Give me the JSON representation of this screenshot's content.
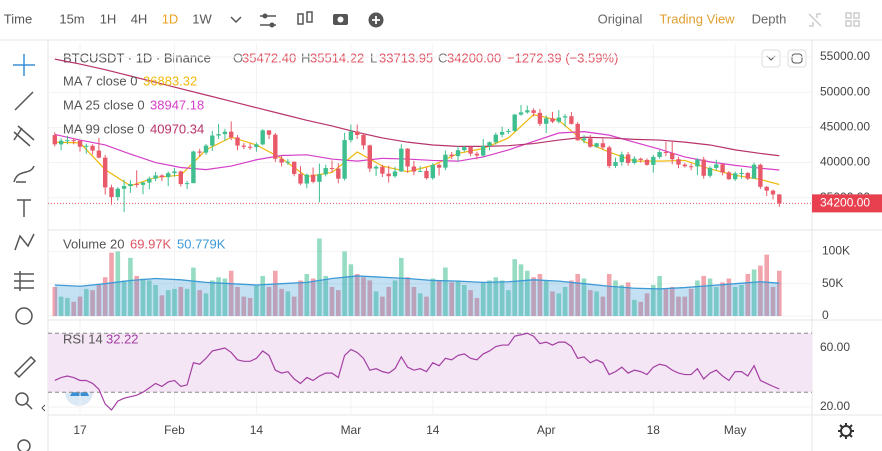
{
  "toolbar": {
    "intervals": [
      {
        "label": "Time",
        "active": false
      },
      {
        "label": "15m",
        "active": false
      },
      {
        "label": "1H",
        "active": false
      },
      {
        "label": "4H",
        "active": false
      },
      {
        "label": "1D",
        "active": true
      },
      {
        "label": "1W",
        "active": false
      }
    ],
    "views": [
      {
        "label": "Original",
        "active": false
      },
      {
        "label": "Trading View",
        "active": true
      },
      {
        "label": "Depth",
        "active": false
      }
    ]
  },
  "chart_data": {
    "type": "candlestick",
    "title": "BTCUSDT · 1D · Binance",
    "ohlc_legend": [
      {
        "prefix": "O",
        "text": "35472.40"
      },
      {
        "prefix": "H",
        "text": "35514.22"
      },
      {
        "prefix": "L",
        "text": "33713.95"
      },
      {
        "prefix": "C",
        "text": "34200.00"
      }
    ],
    "change_text": "−1272.39 (−3.59%)",
    "up_color": "#3fbf8f",
    "down_color": "#e8596a",
    "categories": [
      null,
      null,
      null,
      null,
      "17",
      null,
      null,
      null,
      null,
      null,
      null,
      null,
      null,
      null,
      null,
      null,
      null,
      null,
      null,
      "Feb",
      null,
      null,
      null,
      null,
      null,
      null,
      null,
      null,
      null,
      null,
      null,
      null,
      "14",
      null,
      null,
      null,
      null,
      null,
      null,
      null,
      null,
      null,
      null,
      null,
      null,
      null,
      null,
      "Mar",
      null,
      null,
      null,
      null,
      null,
      null,
      null,
      null,
      null,
      null,
      null,
      null,
      "14",
      null,
      null,
      null,
      null,
      null,
      null,
      null,
      null,
      null,
      null,
      null,
      null,
      null,
      null,
      null,
      null,
      null,
      "Apr",
      null,
      null,
      null,
      null,
      null,
      null,
      null,
      null,
      null,
      null,
      null,
      null,
      null,
      null,
      null,
      null,
      "18",
      null,
      null,
      null,
      null,
      null,
      null,
      null,
      null,
      null,
      null,
      null,
      null,
      "May",
      null,
      null,
      null,
      null,
      null,
      null,
      null
    ],
    "open": [
      43900,
      42590,
      43100,
      43180,
      43110,
      42250,
      42380,
      41700,
      40700,
      36470,
      35100,
      36280,
      36660,
      36960,
      36830,
      37160,
      37720,
      38170,
      37920,
      38490,
      38740,
      36950,
      37080,
      41570,
      41410,
      42410,
      43840,
      44040,
      44390,
      43570,
      42410,
      42240,
      42200,
      42590,
      44580,
      43960,
      40540,
      40000,
      40120,
      38390,
      37020,
      38270,
      37260,
      38330,
      39220,
      39140,
      37710,
      43190,
      44420,
      43920,
      42450,
      39150,
      39400,
      38420,
      38060,
      38740,
      41980,
      39440,
      38730,
      38810,
      37790,
      39670,
      39280,
      41120,
      40920,
      41760,
      42200,
      41260,
      41000,
      42360,
      42890,
      43960,
      44350,
      44500,
      46820,
      47130,
      47430,
      47060,
      45510,
      46280,
      45810,
      46400,
      46580,
      45500,
      43170,
      43440,
      42250,
      42750,
      42160,
      39520,
      40070,
      41150,
      39940,
      40550,
      40380,
      39680,
      40800,
      41490,
      41360,
      40480,
      39710,
      39470,
      39450,
      40430,
      38120,
      39240,
      39740,
      38600,
      37630,
      38470,
      38520,
      37720,
      39690,
      36550,
      36010,
      35472.4
    ],
    "high": [
      44300,
      43450,
      43800,
      43500,
      43180,
      42700,
      42600,
      43500,
      41100,
      36850,
      36500,
      37550,
      37500,
      38900,
      37250,
      38000,
      38650,
      38350,
      38750,
      39250,
      38850,
      37400,
      41700,
      41950,
      42650,
      44500,
      45500,
      44800,
      45850,
      43900,
      42800,
      42750,
      42850,
      44750,
      44600,
      44200,
      40950,
      40500,
      40150,
      39500,
      38450,
      39300,
      39850,
      39700,
      40300,
      39900,
      44250,
      45400,
      45400,
      44100,
      42550,
      39650,
      39700,
      39550,
      39400,
      42600,
      42050,
      40250,
      39500,
      39300,
      39900,
      39900,
      41700,
      41500,
      42350,
      42400,
      42300,
      41550,
      43350,
      43000,
      44250,
      45100,
      44800,
      46900,
      48200,
      48100,
      47700,
      47600,
      46700,
      47200,
      47450,
      46900,
      47200,
      45750,
      43900,
      43950,
      42800,
      43400,
      42400,
      40700,
      41550,
      41500,
      40900,
      40700,
      40600,
      41100,
      41750,
      42950,
      42950,
      40800,
      39950,
      39850,
      40600,
      40800,
      39470,
      40400,
      39950,
      38800,
      38700,
      39150,
      38650,
      40000,
      39850,
      36650,
      36150,
      35514.22
    ],
    "low": [
      42300,
      41750,
      42600,
      42600,
      41550,
      41250,
      41150,
      40600,
      35450,
      34000,
      34600,
      32950,
      35700,
      36450,
      35500,
      36200,
      37350,
      37350,
      36650,
      38000,
      36600,
      36250,
      37050,
      40800,
      41100,
      41650,
      43350,
      43100,
      43200,
      41750,
      41900,
      41800,
      41550,
      42450,
      43350,
      40100,
      39450,
      39650,
      38050,
      36800,
      36350,
      37050,
      34350,
      38050,
      38600,
      37050,
      37450,
      42850,
      43350,
      41850,
      38650,
      38100,
      37950,
      37150,
      37850,
      38650,
      38550,
      38200,
      38650,
      37600,
      37550,
      38150,
      38900,
      40500,
      40200,
      41550,
      40900,
      40450,
      40850,
      41750,
      42550,
      43600,
      44050,
      44400,
      46650,
      46950,
      46550,
      45200,
      44200,
      45600,
      45550,
      45100,
      45400,
      43100,
      42750,
      42100,
      42100,
      41850,
      39200,
      39250,
      39550,
      39550,
      39750,
      39990,
      39550,
      38550,
      40550,
      40900,
      39750,
      39200,
      39300,
      38900,
      38200,
      37700,
      37850,
      38900,
      38200,
      37550,
      37400,
      37700,
      37500,
      37700,
      36250,
      35250,
      34750,
      33713.95
    ],
    "close": [
      42590,
      43100,
      43180,
      43110,
      42250,
      42380,
      41700,
      40700,
      36470,
      35100,
      36280,
      36660,
      36960,
      36830,
      37160,
      37720,
      38170,
      37920,
      38490,
      38740,
      36950,
      37080,
      41570,
      41410,
      42410,
      43840,
      44040,
      44390,
      43570,
      42410,
      42240,
      42200,
      42590,
      44580,
      43960,
      40540,
      40000,
      40120,
      38390,
      37020,
      38270,
      37260,
      38330,
      39220,
      39140,
      37710,
      43190,
      44420,
      43920,
      42450,
      39150,
      39400,
      38420,
      38060,
      38740,
      41980,
      39440,
      38730,
      38810,
      37790,
      39670,
      39280,
      41120,
      40920,
      41760,
      42200,
      41260,
      41000,
      42360,
      42890,
      43960,
      44350,
      44500,
      46820,
      47130,
      47430,
      47060,
      45510,
      46280,
      45810,
      46400,
      46580,
      45500,
      43170,
      43440,
      42250,
      42750,
      42160,
      39520,
      40070,
      41150,
      39940,
      40550,
      40380,
      39680,
      40800,
      41490,
      41360,
      40480,
      39710,
      39470,
      39450,
      40430,
      38120,
      39240,
      39740,
      38600,
      37630,
      38470,
      38520,
      37720,
      39690,
      36550,
      36010,
      35472.4,
      34200
    ],
    "ylim": [
      30700,
      56850
    ],
    "yticks": [
      {
        "value": 35000,
        "label": "35000.00"
      },
      {
        "value": 40000,
        "label": "40000.00"
      },
      {
        "value": 45000,
        "label": "45000.00"
      },
      {
        "value": 50000,
        "label": "50000.00"
      },
      {
        "value": 55000,
        "label": "55000.00"
      }
    ],
    "last_price": {
      "value": 34200,
      "label": "34200.00"
    },
    "ma_x": [
      0,
      4,
      8,
      12,
      16,
      20,
      24,
      28,
      32,
      36,
      40,
      44,
      48,
      52,
      56,
      60,
      64,
      68,
      72,
      76,
      80,
      84,
      88,
      92,
      96,
      100,
      104,
      108,
      112,
      115
    ],
    "ma_lines": [
      {
        "name": "MA 7 close 0",
        "label": "36883.32",
        "color": "#f0b90b",
        "values": [
          42900,
          42800,
          39000,
          36700,
          37900,
          38200,
          41800,
          43600,
          42500,
          40600,
          38000,
          38600,
          41500,
          39500,
          38700,
          39600,
          41300,
          42000,
          43500,
          46800,
          46000,
          43000,
          41500,
          40200,
          40200,
          40300,
          39100,
          38200,
          37600,
          36883.32
        ]
      },
      {
        "name": "MA 25 close 0",
        "label": "38947.18",
        "color": "#d63fc9",
        "values": [
          44000,
          43200,
          42500,
          41200,
          40000,
          39300,
          39000,
          39500,
          40400,
          41000,
          41100,
          40500,
          40200,
          40600,
          40500,
          40300,
          40200,
          40800,
          41800,
          43000,
          44200,
          44400,
          43900,
          42900,
          41900,
          40800,
          40100,
          39600,
          39200,
          38947.18
        ]
      },
      {
        "name": "MA 99 close 0",
        "label": "40970.34",
        "color": "#b8336a",
        "values": [
          54700,
          54000,
          53200,
          52300,
          51400,
          50500,
          49600,
          48700,
          47800,
          46900,
          46000,
          45200,
          44300,
          43500,
          42900,
          42500,
          42300,
          42300,
          42400,
          42700,
          43200,
          43600,
          43500,
          43300,
          43200,
          42900,
          42500,
          41800,
          41300,
          40970.34
        ]
      }
    ],
    "volume": {
      "name": "Volume 20",
      "labels": [
        "69.97K",
        "50.779K"
      ],
      "ma_color": "#3d9ad6",
      "values": [
        45000,
        30000,
        28000,
        22000,
        30000,
        42000,
        40000,
        48000,
        60000,
        98000,
        100000,
        55000,
        90000,
        62000,
        58000,
        55000,
        48000,
        32000,
        40000,
        42000,
        45000,
        42000,
        75000,
        40000,
        35000,
        55000,
        60000,
        58000,
        70000,
        45000,
        30000,
        28000,
        48000,
        62000,
        45000,
        70000,
        42000,
        38000,
        30000,
        55000,
        65000,
        58000,
        120000,
        62000,
        45000,
        40000,
        100000,
        80000,
        65000,
        60000,
        55000,
        38000,
        30000,
        45000,
        55000,
        90000,
        60000,
        45000,
        35000,
        30000,
        58000,
        55000,
        75000,
        52000,
        55000,
        48000,
        40000,
        28000,
        52000,
        55000,
        60000,
        55000,
        40000,
        88000,
        80000,
        70000,
        60000,
        65000,
        55000,
        38000,
        35000,
        45000,
        55000,
        65000,
        58000,
        40000,
        38000,
        30000,
        65000,
        55000,
        48000,
        52000,
        25000,
        22000,
        35000,
        48000,
        62000,
        42000,
        45000,
        30000,
        30000,
        42000,
        55000,
        62000,
        58000,
        45000,
        52000,
        58000,
        45000,
        48000,
        65000,
        72000,
        78000,
        95000,
        45000,
        69970
      ],
      "ma": [
        48000,
        46000,
        50000,
        55000,
        58000,
        56000,
        52000,
        50000,
        48000,
        50000,
        52000,
        58000,
        62000,
        60000,
        58000,
        55000,
        54000,
        52000,
        53000,
        56000,
        54000,
        50000,
        46000,
        43000,
        42000,
        44000,
        47000,
        50000,
        53000,
        50779
      ],
      "ylim": [
        0,
        130000
      ],
      "yticks": [
        0,
        {
          "value": 50000,
          "label": "50K"
        },
        {
          "value": 100000,
          "label": "100K"
        }
      ]
    },
    "rsi": {
      "name": "RSI 14",
      "label": "32.22",
      "color": "#a43fa4",
      "values": [
        38,
        40,
        41,
        40,
        38,
        38,
        36,
        32,
        22,
        18,
        24,
        26,
        27,
        28,
        30,
        33,
        36,
        34,
        37,
        38,
        34,
        35,
        50,
        49,
        53,
        58,
        59,
        60,
        57,
        52,
        51,
        51,
        53,
        58,
        55,
        45,
        43,
        44,
        39,
        36,
        40,
        38,
        41,
        43,
        43,
        40,
        55,
        59,
        57,
        53,
        45,
        46,
        44,
        43,
        46,
        54,
        47,
        45,
        46,
        44,
        50,
        48,
        53,
        52,
        55,
        56,
        53,
        52,
        56,
        58,
        61,
        62,
        62,
        68,
        69,
        70,
        68,
        63,
        64,
        62,
        64,
        64,
        61,
        53,
        54,
        50,
        52,
        50,
        42,
        44,
        47,
        43,
        45,
        44,
        42,
        47,
        49,
        48,
        45,
        43,
        42,
        42,
        46,
        39,
        43,
        45,
        41,
        38,
        44,
        44,
        41,
        48,
        38,
        36,
        34,
        32.22
      ],
      "ylim": [
        14.6,
        75.6
      ],
      "yticks": [
        {
          "value": 20,
          "label": "20.00"
        },
        {
          "value": 60,
          "label": "60.00"
        }
      ],
      "bands": [
        30,
        70
      ]
    }
  }
}
